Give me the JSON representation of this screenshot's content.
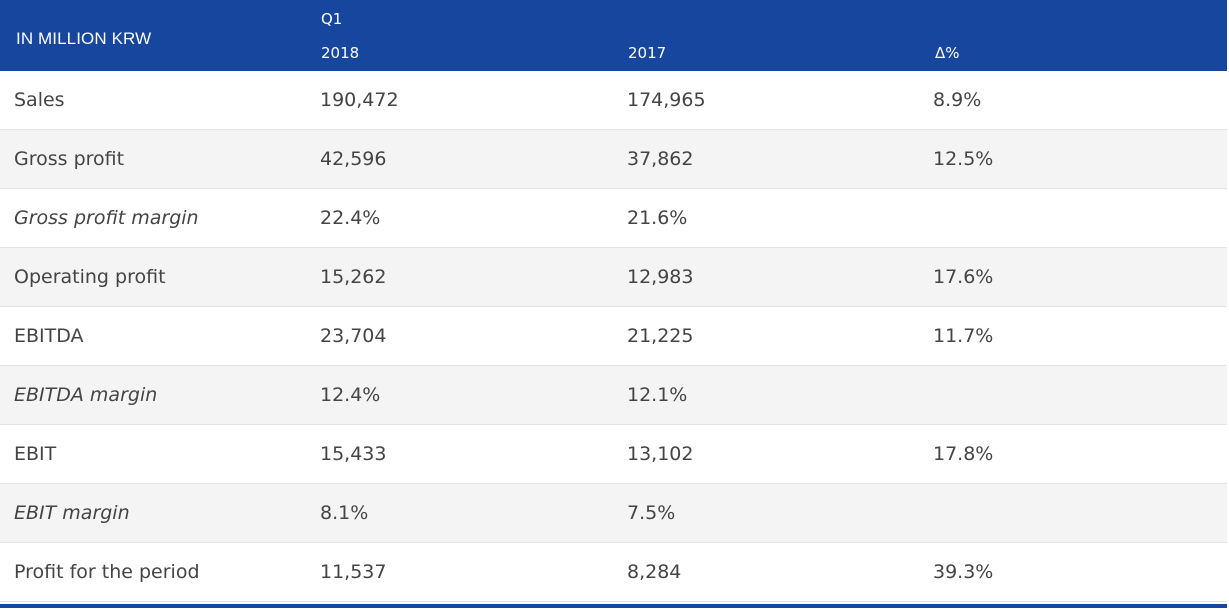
{
  "header": {
    "label": "IN MILLION KRW",
    "period": "Q1",
    "col_2018": "2018",
    "col_2017": "2017",
    "col_delta": "Δ%"
  },
  "rows": [
    {
      "label": "Sales",
      "v2018": "190,472",
      "v2017": "174,965",
      "delta": "8.9%"
    },
    {
      "label": "Gross profit",
      "v2018": "42,596",
      "v2017": "37,862",
      "delta": "12.5%"
    },
    {
      "label": "Gross profit margin",
      "v2018": "22.4%",
      "v2017": "21.6%",
      "delta": ""
    },
    {
      "label": "Operating profit",
      "v2018": "15,262",
      "v2017": "12,983",
      "delta": "17.6%"
    },
    {
      "label": "EBITDA",
      "v2018": "23,704",
      "v2017": "21,225",
      "delta": "11.7%"
    },
    {
      "label": "EBITDA margin",
      "v2018": "12.4%",
      "v2017": "12.1%",
      "delta": ""
    },
    {
      "label": "EBIT",
      "v2018": "15,433",
      "v2017": "13,102",
      "delta": "17.8%"
    },
    {
      "label": "EBIT margin",
      "v2018": "8.1%",
      "v2017": "7.5%",
      "delta": ""
    },
    {
      "label": "Profit for the period",
      "v2018": "11,537",
      "v2017": "8,284",
      "delta": "39.3%"
    }
  ],
  "colors": {
    "header_bg": "#17469e",
    "header_text": "#ffffff",
    "row_alt": "#f4f4f4",
    "text": "#444444"
  }
}
